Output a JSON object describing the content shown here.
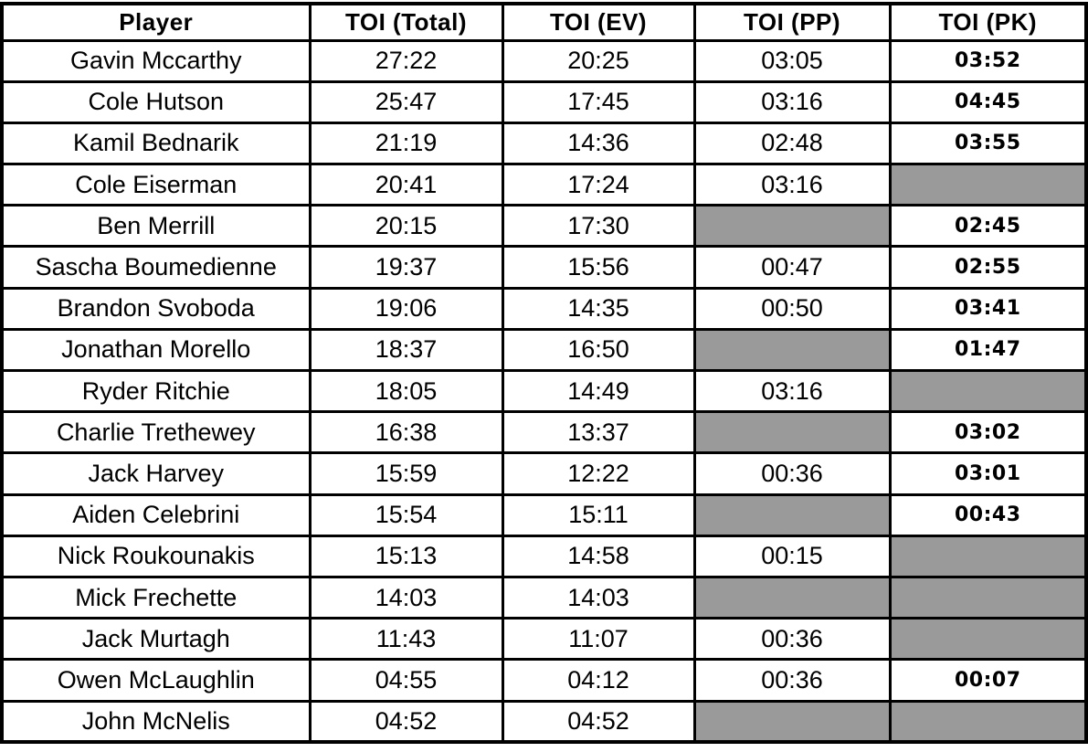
{
  "colors": {
    "empty_cell_gray": "#9a9a9a",
    "border_black": "#000000",
    "background_white": "#ffffff"
  },
  "chart_data": {
    "type": "table",
    "columns": [
      "Player",
      "TOI (Total)",
      "TOI (EV)",
      "TOI (PP)",
      "TOI (PK)"
    ],
    "rows": [
      {
        "player": "Gavin Mccarthy",
        "toi_total": "27:22",
        "toi_ev": "20:25",
        "toi_pp": "03:05",
        "toi_pk": "03:52"
      },
      {
        "player": "Cole Hutson",
        "toi_total": "25:47",
        "toi_ev": "17:45",
        "toi_pp": "03:16",
        "toi_pk": "04:45"
      },
      {
        "player": "Kamil Bednarik",
        "toi_total": "21:19",
        "toi_ev": "14:36",
        "toi_pp": "02:48",
        "toi_pk": "03:55"
      },
      {
        "player": "Cole Eiserman",
        "toi_total": "20:41",
        "toi_ev": "17:24",
        "toi_pp": "03:16",
        "toi_pk": null
      },
      {
        "player": "Ben Merrill",
        "toi_total": "20:15",
        "toi_ev": "17:30",
        "toi_pp": null,
        "toi_pk": "02:45"
      },
      {
        "player": "Sascha Boumedienne",
        "toi_total": "19:37",
        "toi_ev": "15:56",
        "toi_pp": "00:47",
        "toi_pk": "02:55"
      },
      {
        "player": "Brandon Svoboda",
        "toi_total": "19:06",
        "toi_ev": "14:35",
        "toi_pp": "00:50",
        "toi_pk": "03:41"
      },
      {
        "player": "Jonathan Morello",
        "toi_total": "18:37",
        "toi_ev": "16:50",
        "toi_pp": null,
        "toi_pk": "01:47"
      },
      {
        "player": "Ryder Ritchie",
        "toi_total": "18:05",
        "toi_ev": "14:49",
        "toi_pp": "03:16",
        "toi_pk": null
      },
      {
        "player": "Charlie Trethewey",
        "toi_total": "16:38",
        "toi_ev": "13:37",
        "toi_pp": null,
        "toi_pk": "03:02"
      },
      {
        "player": "Jack Harvey",
        "toi_total": "15:59",
        "toi_ev": "12:22",
        "toi_pp": "00:36",
        "toi_pk": "03:01"
      },
      {
        "player": "Aiden Celebrini",
        "toi_total": "15:54",
        "toi_ev": "15:11",
        "toi_pp": null,
        "toi_pk": "00:43"
      },
      {
        "player": "Nick Roukounakis",
        "toi_total": "15:13",
        "toi_ev": "14:58",
        "toi_pp": "00:15",
        "toi_pk": null
      },
      {
        "player": "Mick Frechette",
        "toi_total": "14:03",
        "toi_ev": "14:03",
        "toi_pp": null,
        "toi_pk": null
      },
      {
        "player": "Jack Murtagh",
        "toi_total": "11:43",
        "toi_ev": "11:07",
        "toi_pp": "00:36",
        "toi_pk": null
      },
      {
        "player": "Owen McLaughlin",
        "toi_total": "04:55",
        "toi_ev": "04:12",
        "toi_pp": "00:36",
        "toi_pk": "00:07"
      },
      {
        "player": "John McNelis",
        "toi_total": "04:52",
        "toi_ev": "04:52",
        "toi_pp": null,
        "toi_pk": null
      }
    ]
  }
}
